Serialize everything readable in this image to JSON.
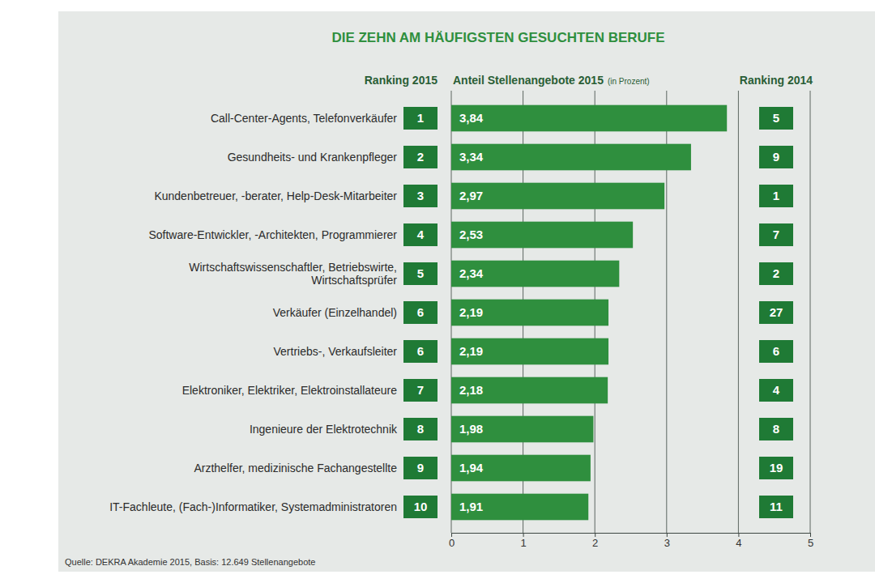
{
  "chart_data": {
    "type": "bar",
    "orientation": "horizontal",
    "title": "DIE ZEHN AM HÄUFIGSTEN GESUCHTEN BERUFE",
    "x_label": "Anteil Stellenangebote 2015",
    "x_label_unit": "(in Prozent)",
    "rank_2015_label": "Ranking 2015",
    "rank_2014_label": "Ranking 2014",
    "source": "Quelle: DEKRA Akademie 2015, Basis: 12.649 Stellenangebote",
    "categories": [
      "Call-Center-Agents, Telefonverkäufer",
      "Gesundheits- und Krankenpfleger",
      "Kundenbetreuer, -berater, Help-Desk-Mitarbeiter",
      "Software-Entwickler, -Architekten, Programmierer",
      "Wirtschaftswissenschaftler, Betriebswirte, Wirtschaftsprüfer",
      "Verkäufer (Einzelhandel)",
      "Vertriebs-, Verkaufsleiter",
      "Elektroniker, Elektriker, Elektroinstallateure",
      "Ingenieure der Elektrotechnik",
      "Arzthelfer, medizinische Fachangestellte",
      "IT-Fachleute, (Fach-)Informatiker, Systemadministratoren"
    ],
    "values": [
      3.84,
      3.34,
      2.97,
      2.53,
      2.34,
      2.19,
      2.19,
      2.18,
      1.98,
      1.94,
      1.91
    ],
    "value_labels": [
      "3,84",
      "3,34",
      "2,97",
      "2,53",
      "2,34",
      "2,19",
      "2,19",
      "2,18",
      "1,98",
      "1,94",
      "1,91"
    ],
    "rank_2015": [
      1,
      2,
      3,
      4,
      5,
      6,
      6,
      7,
      8,
      9,
      10
    ],
    "rank_2014": [
      5,
      9,
      1,
      7,
      2,
      27,
      6,
      4,
      8,
      19,
      11
    ],
    "color": "#2f8f3e",
    "xlim": [
      0,
      5
    ],
    "xticks": [
      0,
      1,
      2,
      3,
      4,
      5
    ],
    "grid": true,
    "data_labels": true
  }
}
